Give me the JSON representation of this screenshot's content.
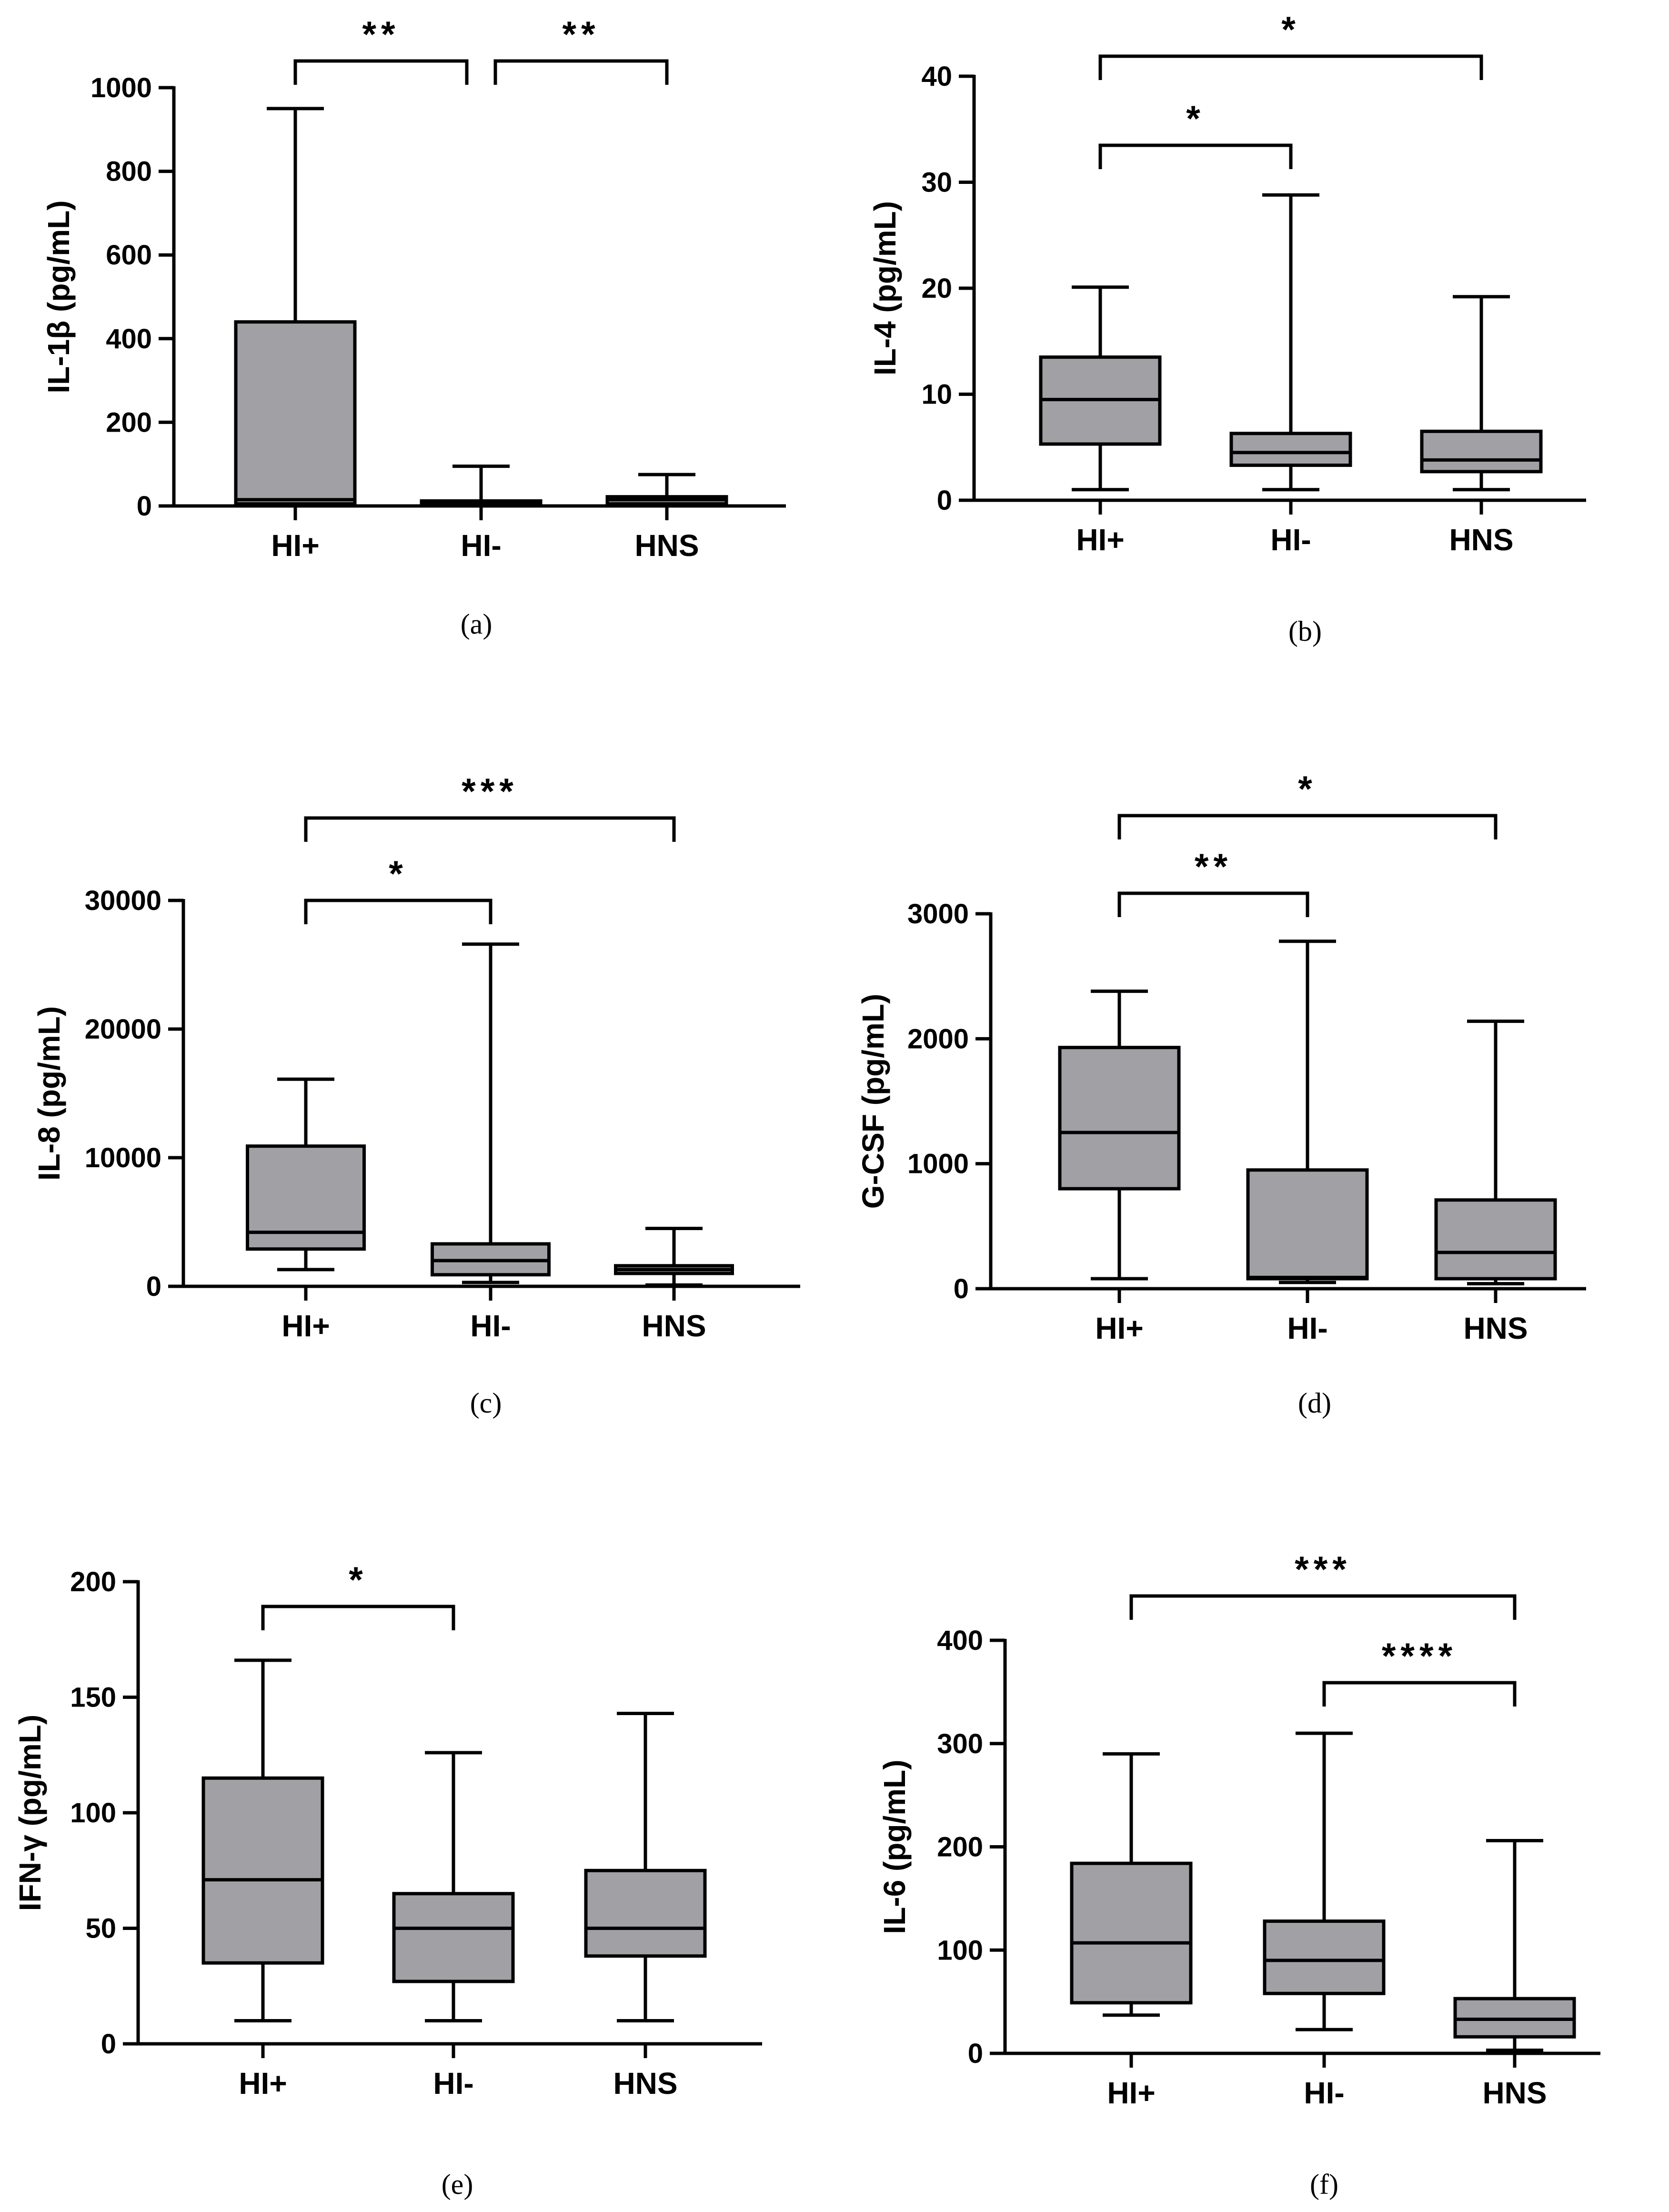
{
  "figure": {
    "background": "#ffffff",
    "box_fill": "#a0a0a5",
    "line_color": "#000000"
  },
  "chart_data": [
    {
      "id": "a",
      "type": "box",
      "caption": "(a)",
      "ylabel": "IL-1β (pg/mL)",
      "ylim": [
        0,
        1000
      ],
      "yticks": [
        0,
        200,
        400,
        600,
        800,
        1000
      ],
      "yticklabels": [
        "0",
        "200",
        "400",
        "600",
        "800",
        "1000"
      ],
      "categories": [
        "HI+",
        "HI-",
        "HNS"
      ],
      "boxes": [
        {
          "min": 0,
          "q1": 5,
          "median": 15,
          "q3": 440,
          "max": 950
        },
        {
          "min": 0,
          "q1": 2,
          "median": 8,
          "q3": 12,
          "max": 95
        },
        {
          "min": 0,
          "q1": 5,
          "median": 15,
          "q3": 22,
          "max": 75
        }
      ],
      "significance": [
        {
          "from": 0,
          "to": 1,
          "label": "**"
        },
        {
          "from": 1,
          "to": 2,
          "label": "**"
        }
      ]
    },
    {
      "id": "b",
      "type": "box",
      "caption": "(b)",
      "ylabel": "IL-4 (pg/mL)",
      "ylim": [
        0,
        40
      ],
      "yticks": [
        0,
        10,
        20,
        30,
        40
      ],
      "yticklabels": [
        "0",
        "10",
        "20",
        "30",
        "40"
      ],
      "categories": [
        "HI+",
        "HI-",
        "HNS"
      ],
      "boxes": [
        {
          "min": 1,
          "q1": 5.3,
          "median": 9.5,
          "q3": 13.5,
          "max": 20.1
        },
        {
          "min": 1,
          "q1": 3.3,
          "median": 4.5,
          "q3": 6.3,
          "max": 28.8
        },
        {
          "min": 1,
          "q1": 2.7,
          "median": 3.8,
          "q3": 6.5,
          "max": 19.2
        }
      ],
      "significance": [
        {
          "from": 0,
          "to": 1,
          "label": "*"
        },
        {
          "from": 0,
          "to": 2,
          "label": "*"
        }
      ]
    },
    {
      "id": "c",
      "type": "box",
      "caption": "(c)",
      "ylabel": "IL-8 (pg/mL)",
      "ylim": [
        0,
        30000
      ],
      "yticks": [
        0,
        10000,
        20000,
        30000
      ],
      "yticklabels": [
        "0",
        "10000",
        "20000",
        "30000"
      ],
      "categories": [
        "HI+",
        "HI-",
        "HNS"
      ],
      "boxes": [
        {
          "min": 1300,
          "q1": 2900,
          "median": 4200,
          "q3": 10900,
          "max": 16100
        },
        {
          "min": 300,
          "q1": 900,
          "median": 2000,
          "q3": 3300,
          "max": 26600
        },
        {
          "min": 100,
          "q1": 1000,
          "median": 1300,
          "q3": 1600,
          "max": 4500
        }
      ],
      "significance": [
        {
          "from": 0,
          "to": 1,
          "label": "*"
        },
        {
          "from": 0,
          "to": 2,
          "label": "***"
        }
      ]
    },
    {
      "id": "d",
      "type": "box",
      "caption": "(d)",
      "ylabel": "G-CSF (pg/mL)",
      "ylim": [
        0,
        3000
      ],
      "yticks": [
        0,
        1000,
        2000,
        3000
      ],
      "yticklabels": [
        "0",
        "1000",
        "2000",
        "3000"
      ],
      "categories": [
        "HI+",
        "HI-",
        "HNS"
      ],
      "boxes": [
        {
          "min": 80,
          "q1": 800,
          "median": 1250,
          "q3": 1930,
          "max": 2380
        },
        {
          "min": 50,
          "q1": 80,
          "median": 90,
          "q3": 950,
          "max": 2780
        },
        {
          "min": 40,
          "q1": 80,
          "median": 290,
          "q3": 710,
          "max": 2140
        }
      ],
      "significance": [
        {
          "from": 0,
          "to": 1,
          "label": "**"
        },
        {
          "from": 0,
          "to": 2,
          "label": "*"
        }
      ]
    },
    {
      "id": "e",
      "type": "box",
      "caption": "(e)",
      "ylabel": "IFN-γ (pg/mL)",
      "ylim": [
        0,
        200
      ],
      "yticks": [
        0,
        50,
        100,
        150,
        200
      ],
      "yticklabels": [
        "0",
        "50",
        "100",
        "150",
        "200"
      ],
      "categories": [
        "HI+",
        "HI-",
        "HNS"
      ],
      "boxes": [
        {
          "min": 10,
          "q1": 35,
          "median": 71,
          "q3": 115,
          "max": 166
        },
        {
          "min": 10,
          "q1": 27,
          "median": 50,
          "q3": 65,
          "max": 126
        },
        {
          "min": 10,
          "q1": 38,
          "median": 50,
          "q3": 75,
          "max": 143
        }
      ],
      "significance": [
        {
          "from": 0,
          "to": 1,
          "label": "*"
        }
      ]
    },
    {
      "id": "f",
      "type": "box",
      "caption": "(f)",
      "ylabel": "IL-6 (pg/mL)",
      "ylim": [
        0,
        400
      ],
      "yticks": [
        0,
        100,
        200,
        300,
        400
      ],
      "yticklabels": [
        "0",
        "100",
        "200",
        "300",
        "400"
      ],
      "categories": [
        "HI+",
        "HI-",
        "HNS"
      ],
      "boxes": [
        {
          "min": 37,
          "q1": 49,
          "median": 107,
          "q3": 184,
          "max": 290
        },
        {
          "min": 23,
          "q1": 58,
          "median": 90,
          "q3": 128,
          "max": 310
        },
        {
          "min": 3,
          "q1": 16,
          "median": 33,
          "q3": 53,
          "max": 206
        }
      ],
      "significance": [
        {
          "from": 0,
          "to": 2,
          "label": "***"
        },
        {
          "from": 1,
          "to": 2,
          "label": "****"
        }
      ]
    }
  ]
}
